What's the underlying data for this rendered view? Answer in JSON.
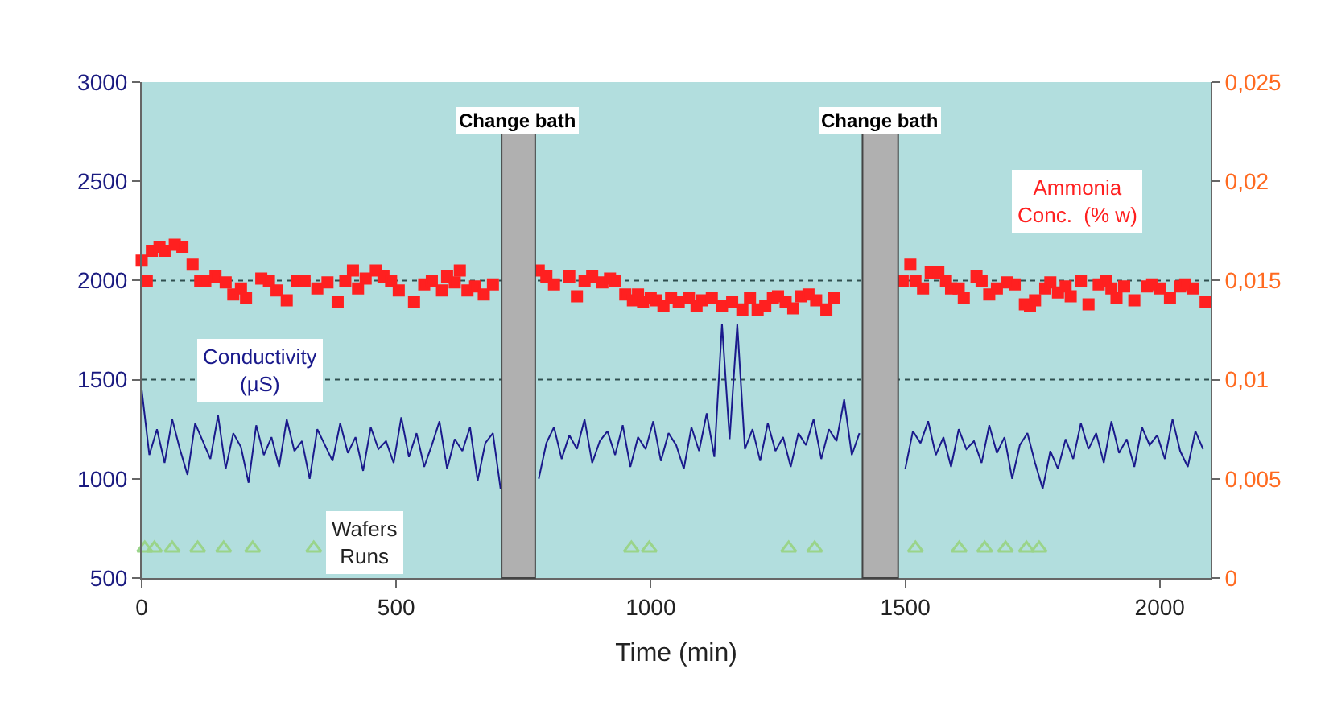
{
  "chart_data": {
    "type": "line",
    "xlabel": "Time (min)",
    "xlim": [
      0,
      2100
    ],
    "xticks": [
      0,
      500,
      1000,
      1500,
      2000
    ],
    "ylim": [
      500,
      3000
    ],
    "yticks": [
      500,
      1000,
      1500,
      2000,
      2500,
      3000
    ],
    "y2lim": [
      0,
      0.025
    ],
    "y2ticks": [
      0,
      {
        "value": 0.005,
        "label": "0,005"
      },
      {
        "value": 0.01,
        "label": "0,01"
      },
      {
        "value": 0.015,
        "label": "0,015"
      },
      {
        "value": 0.02,
        "label": "0,02"
      },
      {
        "value": 0.025,
        "label": "0,025"
      }
    ],
    "grid": false,
    "ref_lines": [
      {
        "axis": "y",
        "value": 1500,
        "line_style": "dotted",
        "color": "#2f4f4f"
      },
      {
        "axis": "y",
        "value": 2000,
        "line_style": "dotted",
        "color": "#2f4f4f"
      }
    ],
    "bands": [
      {
        "axis": "x",
        "from": 707,
        "to": 773,
        "label": "Change bath",
        "color": "#b0b0b0"
      },
      {
        "axis": "x",
        "from": 1416,
        "to": 1486,
        "label": "Change bath",
        "color": "#b0b0b0"
      }
    ],
    "series": [
      {
        "name": "Conductivity\n(µS)",
        "color": "#1a1a8c",
        "marker": "none",
        "line_style": "solid",
        "x": [
          0,
          15,
          30,
          45,
          60,
          75,
          90,
          105,
          120,
          135,
          150,
          165,
          180,
          195,
          210,
          225,
          240,
          255,
          270,
          285,
          300,
          315,
          330,
          345,
          360,
          375,
          390,
          405,
          420,
          435,
          450,
          465,
          480,
          495,
          510,
          525,
          540,
          555,
          570,
          585,
          600,
          615,
          630,
          645,
          660,
          675,
          690,
          705,
          740,
          780,
          795,
          810,
          825,
          840,
          855,
          870,
          885,
          900,
          915,
          930,
          945,
          960,
          975,
          990,
          1005,
          1020,
          1035,
          1050,
          1065,
          1080,
          1095,
          1110,
          1125,
          1140,
          1155,
          1170,
          1185,
          1200,
          1215,
          1230,
          1245,
          1260,
          1275,
          1290,
          1305,
          1320,
          1335,
          1350,
          1365,
          1380,
          1395,
          1410,
          1450,
          1500,
          1515,
          1530,
          1545,
          1560,
          1575,
          1590,
          1605,
          1620,
          1635,
          1650,
          1665,
          1680,
          1695,
          1710,
          1725,
          1740,
          1755,
          1770,
          1785,
          1800,
          1815,
          1830,
          1845,
          1860,
          1875,
          1890,
          1905,
          1920,
          1935,
          1950,
          1965,
          1980,
          1995,
          2010,
          2025,
          2040,
          2055,
          2070,
          2085
        ],
        "values": [
          1450,
          1120,
          1250,
          1080,
          1300,
          1150,
          1020,
          1280,
          1190,
          1100,
          1320,
          1050,
          1230,
          1160,
          980,
          1270,
          1120,
          1210,
          1060,
          1300,
          1140,
          1190,
          1000,
          1250,
          1170,
          1090,
          1280,
          1130,
          1210,
          1040,
          1260,
          1150,
          1190,
          1080,
          1310,
          1110,
          1230,
          1060,
          1170,
          1290,
          1050,
          1200,
          1140,
          1260,
          990,
          1180,
          1230,
          950,
          null,
          1000,
          1180,
          1260,
          1100,
          1220,
          1150,
          1300,
          1080,
          1190,
          1240,
          1120,
          1270,
          1060,
          1210,
          1150,
          1290,
          1090,
          1230,
          1170,
          1050,
          1260,
          1140,
          1330,
          1110,
          1780,
          1200,
          1780,
          1150,
          1250,
          1090,
          1280,
          1140,
          1210,
          1060,
          1230,
          1170,
          1300,
          1100,
          1250,
          1190,
          1400,
          1120,
          1230,
          null,
          1050,
          1240,
          1180,
          1290,
          1120,
          1210,
          1060,
          1250,
          1150,
          1190,
          1080,
          1270,
          1130,
          1210,
          1000,
          1170,
          1230,
          1080,
          950,
          1140,
          1050,
          1200,
          1100,
          1280,
          1150,
          1230,
          1080,
          1290,
          1130,
          1200,
          1060,
          1260,
          1170,
          1220,
          1100,
          1300,
          1140,
          1060,
          1240,
          1150
        ]
      },
      {
        "name": "Ammonia\nConc.  (% w)",
        "type": "scatter",
        "axis": "y2",
        "color": "#ff2020",
        "marker": "square",
        "x": [
          0,
          10,
          20,
          35,
          45,
          65,
          80,
          100,
          115,
          125,
          145,
          165,
          180,
          195,
          205,
          235,
          250,
          265,
          285,
          305,
          320,
          345,
          365,
          385,
          400,
          415,
          425,
          440,
          460,
          475,
          490,
          505,
          535,
          555,
          570,
          590,
          600,
          615,
          625,
          640,
          655,
          672,
          690,
          780,
          795,
          810,
          840,
          855,
          870,
          885,
          905,
          920,
          930,
          950,
          965,
          975,
          985,
          1000,
          1010,
          1025,
          1040,
          1055,
          1075,
          1090,
          1100,
          1120,
          1140,
          1160,
          1180,
          1195,
          1210,
          1225,
          1240,
          1250,
          1265,
          1280,
          1295,
          1310,
          1325,
          1345,
          1360,
          1495,
          1510,
          1520,
          1535,
          1550,
          1565,
          1580,
          1590,
          1605,
          1615,
          1640,
          1650,
          1665,
          1680,
          1700,
          1715,
          1735,
          1745,
          1755,
          1775,
          1785,
          1800,
          1815,
          1825,
          1845,
          1860,
          1880,
          1895,
          1905,
          1915,
          1930,
          1950,
          1975,
          1985,
          2000,
          2020,
          2040,
          2050,
          2065,
          2090
        ],
        "values": [
          0.016,
          0.015,
          0.0165,
          0.0167,
          0.0165,
          0.0168,
          0.0167,
          0.0158,
          0.015,
          0.015,
          0.0152,
          0.0149,
          0.0143,
          0.0146,
          0.0141,
          0.0151,
          0.015,
          0.0145,
          0.014,
          0.015,
          0.015,
          0.0146,
          0.0149,
          0.0139,
          0.015,
          0.0155,
          0.0146,
          0.0151,
          0.0155,
          0.0152,
          0.015,
          0.0145,
          0.0139,
          0.0148,
          0.015,
          0.0145,
          0.0152,
          0.0149,
          0.0155,
          0.0145,
          0.0147,
          0.0143,
          0.0148,
          0.0155,
          0.0152,
          0.0148,
          0.0152,
          0.0142,
          0.015,
          0.0152,
          0.0149,
          0.0151,
          0.015,
          0.0143,
          0.014,
          0.0143,
          0.0139,
          0.0141,
          0.014,
          0.0137,
          0.0141,
          0.0139,
          0.0141,
          0.0137,
          0.014,
          0.0141,
          0.0137,
          0.0139,
          0.0135,
          0.0141,
          0.0135,
          0.0137,
          0.0141,
          0.0142,
          0.0139,
          0.0136,
          0.0142,
          0.0143,
          0.014,
          0.0135,
          0.0141,
          0.015,
          0.0158,
          0.015,
          0.0146,
          0.0154,
          0.0154,
          0.015,
          0.0146,
          0.0146,
          0.0141,
          0.0152,
          0.015,
          0.0143,
          0.0146,
          0.0149,
          0.0148,
          0.0138,
          0.0137,
          0.014,
          0.0146,
          0.0149,
          0.0144,
          0.0147,
          0.0142,
          0.015,
          0.0138,
          0.0148,
          0.015,
          0.0146,
          0.0141,
          0.0147,
          0.014,
          0.0147,
          0.0148,
          0.0146,
          0.0141,
          0.0147,
          0.0148,
          0.0146,
          0.0139
        ]
      },
      {
        "name": "Wafers\nRuns",
        "type": "scatter",
        "color": "#9ad48a",
        "marker": "triangle",
        "x": [
          6,
          25,
          60,
          110,
          161,
          218,
          338,
          962,
          997,
          1271,
          1322,
          1520,
          1606,
          1656,
          1697,
          1738,
          1763
        ],
        "values": [
          650,
          650,
          650,
          650,
          650,
          650,
          650,
          650,
          650,
          650,
          650,
          650,
          650,
          650,
          650,
          650,
          650
        ]
      }
    ]
  }
}
